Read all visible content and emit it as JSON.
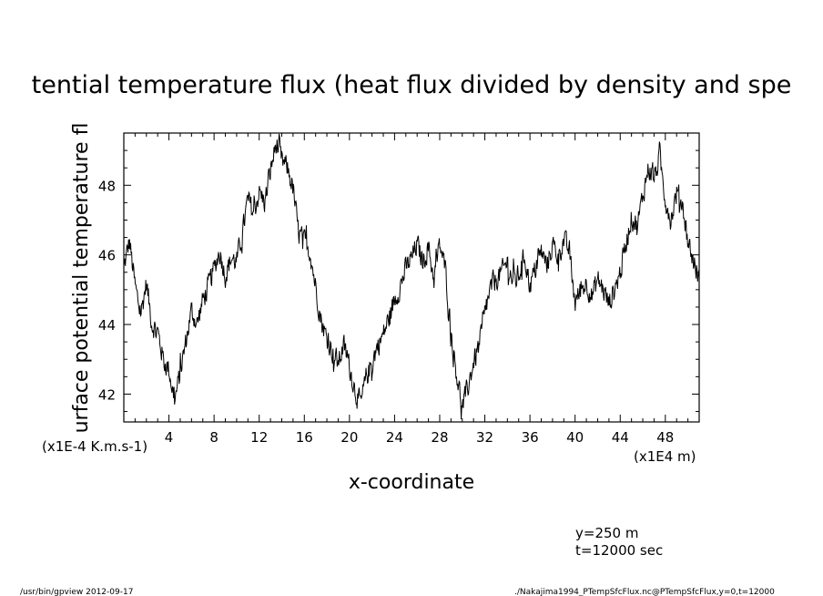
{
  "chart_data": {
    "type": "line",
    "title": "tential temperature flux (heat flux divided by density and spe",
    "xlabel": "x-coordinate",
    "ylabel": "urface potential temperature fl",
    "x_unit": "(x1E4 m)",
    "y_unit": "(x1E-4 K.m.s-1)",
    "xlim": [
      0,
      51
    ],
    "ylim": [
      41.2,
      49.5
    ],
    "x_ticks": [
      "4",
      "8",
      "12",
      "16",
      "20",
      "24",
      "28",
      "32",
      "36",
      "40",
      "44",
      "48"
    ],
    "y_ticks": [
      "42",
      "44",
      "46",
      "48"
    ],
    "grid": false,
    "series": [
      {
        "x": [
          0,
          0.5,
          1,
          1.5,
          2,
          2.5,
          3,
          3.5,
          4,
          4.5,
          5,
          5.5,
          6,
          6.5,
          7,
          7.5,
          8,
          8.5,
          9,
          9.5,
          10,
          10.5,
          11,
          11.5,
          12,
          12.5,
          13,
          13.5,
          14,
          14.5,
          15,
          15.5,
          16,
          16.5,
          17,
          17.5,
          18,
          18.5,
          19,
          19.5,
          20,
          20.5,
          21,
          21.5,
          22,
          22.5,
          23,
          23.5,
          24,
          24.5,
          25,
          25.5,
          26,
          26.5,
          27,
          27.5,
          28,
          28.5,
          29,
          29.5,
          30,
          30.5,
          31,
          31.5,
          32,
          32.5,
          33,
          33.5,
          34,
          34.5,
          35,
          35.5,
          36,
          36.5,
          37,
          37.5,
          38,
          38.5,
          39,
          39.5,
          40,
          40.5,
          41,
          41.5,
          42,
          42.5,
          43,
          43.5,
          44,
          44.5,
          45,
          45.5,
          46,
          46.5,
          47,
          47.5,
          48,
          48.5,
          49,
          49.5,
          50,
          50.5,
          51
        ],
        "values": [
          45.6,
          46.4,
          45.1,
          44.3,
          45.2,
          44.0,
          43.8,
          43.0,
          42.7,
          41.8,
          42.6,
          43.5,
          44.4,
          44.0,
          44.7,
          45.1,
          45.6,
          46.1,
          45.4,
          45.9,
          45.8,
          46.6,
          47.6,
          47.2,
          47.8,
          47.5,
          48.4,
          49.2,
          48.7,
          48.5,
          47.9,
          46.6,
          46.4,
          46.1,
          45.1,
          44.1,
          43.6,
          43.2,
          42.9,
          43.4,
          42.8,
          42.1,
          41.7,
          42.5,
          42.9,
          43.4,
          43.7,
          44.2,
          44.7,
          45.1,
          45.6,
          45.9,
          46.3,
          45.8,
          46.2,
          45.3,
          46.3,
          45.6,
          43.8,
          42.6,
          41.6,
          42.2,
          42.9,
          43.4,
          44.3,
          45.0,
          45.3,
          45.5,
          45.8,
          45.2,
          45.4,
          46.0,
          45.1,
          45.6,
          46.1,
          45.7,
          46.3,
          46.0,
          46.4,
          46.1,
          44.6,
          45.0,
          45.2,
          44.8,
          45.3,
          45.0,
          44.6,
          45.0,
          45.5,
          46.3,
          47.1,
          46.8,
          47.7,
          48.5,
          48.2,
          48.8,
          47.6,
          47.0,
          47.8,
          47.5,
          46.4,
          45.8,
          45.3
        ],
        "noise_amplitude": 0.45
      }
    ]
  },
  "annotations": {
    "y_text": "y=250  m",
    "t_text": "t=12000  sec",
    "footer_left": "/usr/bin/gpview   2012-09-17",
    "footer_right": "./Nakajima1994_PTempSfcFlux.nc@PTempSfcFlux,y=0,t=12000"
  }
}
